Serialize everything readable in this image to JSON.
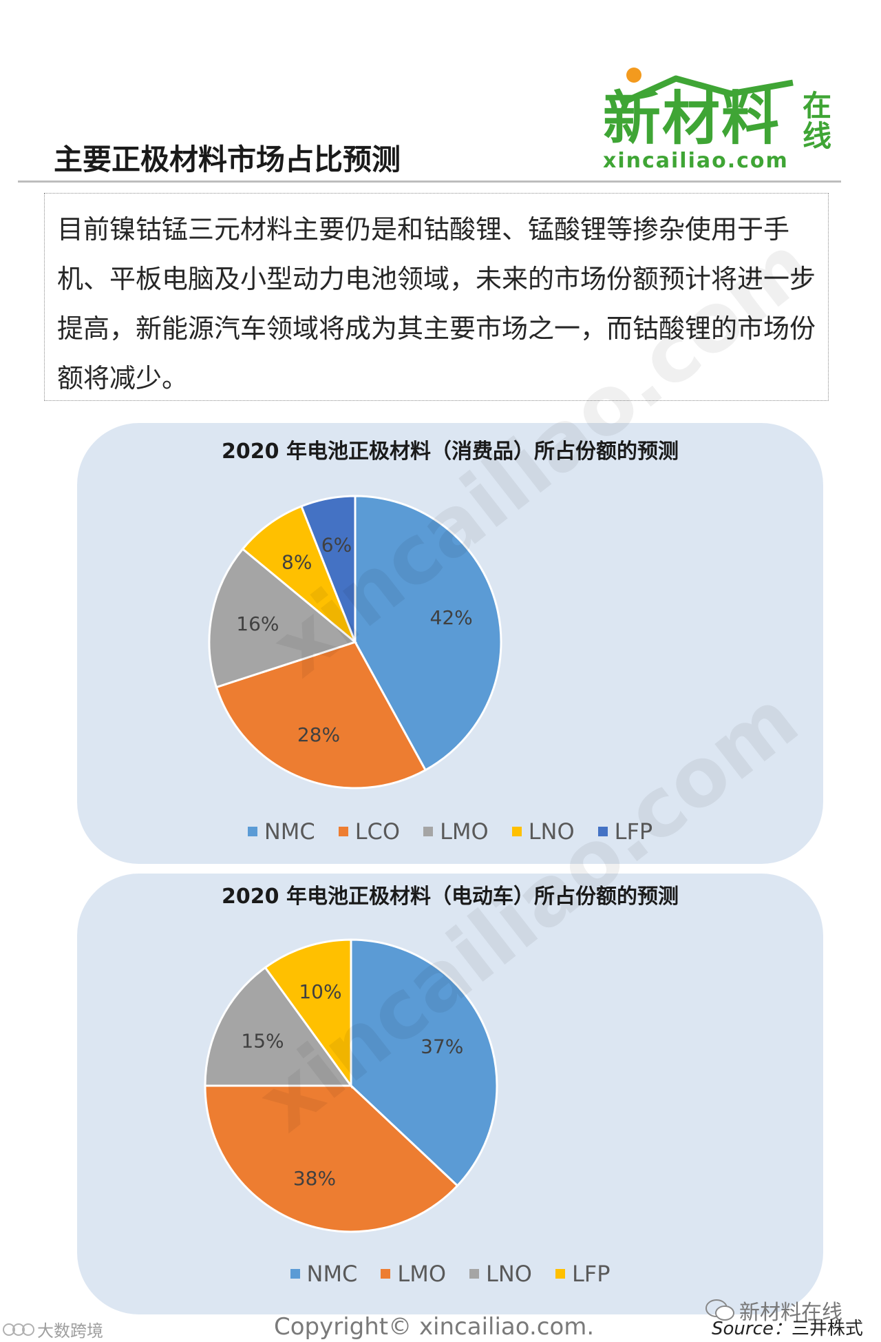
{
  "logo": {
    "main": "新材料",
    "side": "在线",
    "domain": "xincailiao.com"
  },
  "page": {
    "title": "主要正极材料市场占比预测",
    "body_text": "目前镍钴锰三元材料主要仍是和钴酸锂、锰酸锂等掺杂使用于手机、平板电脑及小型动力电池领域，未来的市场份额预计将进一步提高，新能源汽车领域将成为其主要市场之一，而钴酸锂的市场份额将减少。"
  },
  "watermark": "xincailiao.com",
  "colors": {
    "NMC": "#5b9bd5",
    "LCO": "#ed7d31",
    "LMO_consumer": "#a5a5a5",
    "LNO_consumer": "#ffc000",
    "LFP_consumer": "#4472c4",
    "LMO_ev": "#ed7d31",
    "LNO_ev": "#a5a5a5",
    "LFP_ev": "#ffc000",
    "panel_bg": "#dce6f2",
    "logo_green": "#3fa535"
  },
  "chart_data": [
    {
      "type": "pie",
      "title": "2020 年电池正极材料（消费品）所占份额的预测",
      "categories": [
        "NMC",
        "LCO",
        "LMO",
        "LNO",
        "LFP"
      ],
      "values": [
        42,
        28,
        16,
        8,
        6
      ],
      "data_labels": [
        "42%",
        "28%",
        "16%",
        "8%",
        "6%"
      ],
      "colors": [
        "#5b9bd5",
        "#ed7d31",
        "#a5a5a5",
        "#ffc000",
        "#4472c4"
      ],
      "legend_position": "bottom"
    },
    {
      "type": "pie",
      "title": "2020 年电池正极材料（电动车）所占份额的预测",
      "categories": [
        "NMC",
        "LMO",
        "LNO",
        "LFP"
      ],
      "values": [
        37,
        38,
        15,
        10
      ],
      "data_labels": [
        "37%",
        "38%",
        "15%",
        "10%"
      ],
      "colors": [
        "#5b9bd5",
        "#ed7d31",
        "#a5a5a5",
        "#ffc000"
      ],
      "legend_position": "bottom"
    }
  ],
  "footer": {
    "left": "大数跨境",
    "copyright": "Copyright© xincailiao.com.",
    "wechat": "新材料在线",
    "source_label": "Source：",
    "source_value": "三井株式"
  }
}
